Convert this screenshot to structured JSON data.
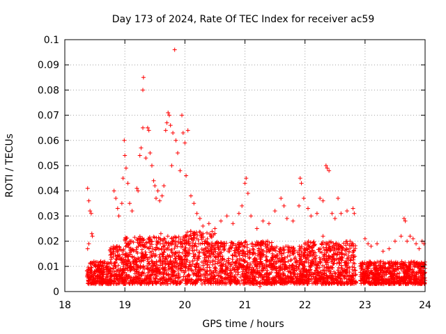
{
  "chart_data": {
    "type": "scatter",
    "title": "Day 173 of 2024, Rate Of TEC Index for receiver ac59",
    "xlabel": "GPS time / hours",
    "ylabel": "ROTI / TECUs",
    "xlim": [
      18,
      24
    ],
    "ylim": [
      0,
      0.1
    ],
    "xticks": [
      18,
      19,
      20,
      21,
      22,
      23,
      24
    ],
    "xtick_labels": [
      "18",
      "19",
      "20",
      "21",
      "22",
      "23",
      "24"
    ],
    "yticks": [
      0,
      0.01,
      0.02,
      0.03,
      0.04,
      0.05,
      0.06,
      0.07,
      0.08,
      0.09,
      0.1
    ],
    "ytick_labels": [
      "0",
      "0.01",
      "0.02",
      "0.03",
      "0.04",
      "0.05",
      "0.06",
      "0.07",
      "0.08",
      "0.09",
      "0.1"
    ],
    "grid": true,
    "marker": "+",
    "marker_color": "#ff0000",
    "series": [
      {
        "name": "ROTI",
        "points": [
          [
            18.38,
            0.041
          ],
          [
            18.4,
            0.036
          ],
          [
            18.42,
            0.032
          ],
          [
            18.44,
            0.031
          ],
          [
            18.45,
            0.023
          ],
          [
            18.46,
            0.022
          ],
          [
            18.38,
            0.017
          ],
          [
            18.4,
            0.019
          ],
          [
            18.82,
            0.04
          ],
          [
            18.85,
            0.037
          ],
          [
            18.88,
            0.033
          ],
          [
            18.9,
            0.03
          ],
          [
            18.95,
            0.035
          ],
          [
            18.99,
            0.06
          ],
          [
            19.0,
            0.054
          ],
          [
            19.02,
            0.049
          ],
          [
            18.97,
            0.045
          ],
          [
            19.05,
            0.043
          ],
          [
            19.08,
            0.035
          ],
          [
            19.12,
            0.032
          ],
          [
            19.2,
            0.041
          ],
          [
            19.22,
            0.04
          ],
          [
            19.25,
            0.054
          ],
          [
            19.27,
            0.057
          ],
          [
            19.3,
            0.065
          ],
          [
            19.3,
            0.08
          ],
          [
            19.31,
            0.085
          ],
          [
            19.35,
            0.053
          ],
          [
            19.38,
            0.065
          ],
          [
            19.4,
            0.064
          ],
          [
            19.42,
            0.055
          ],
          [
            19.45,
            0.05
          ],
          [
            19.48,
            0.044
          ],
          [
            19.5,
            0.042
          ],
          [
            19.52,
            0.037
          ],
          [
            19.55,
            0.04
          ],
          [
            19.58,
            0.036
          ],
          [
            19.62,
            0.038
          ],
          [
            19.65,
            0.042
          ],
          [
            19.68,
            0.064
          ],
          [
            19.7,
            0.067
          ],
          [
            19.72,
            0.071
          ],
          [
            19.74,
            0.07
          ],
          [
            19.76,
            0.066
          ],
          [
            19.78,
            0.05
          ],
          [
            19.8,
            0.063
          ],
          [
            19.83,
            0.096
          ],
          [
            19.85,
            0.06
          ],
          [
            19.88,
            0.055
          ],
          [
            19.92,
            0.048
          ],
          [
            19.95,
            0.07
          ],
          [
            19.97,
            0.063
          ],
          [
            20.0,
            0.059
          ],
          [
            20.02,
            0.046
          ],
          [
            20.05,
            0.064
          ],
          [
            20.1,
            0.038
          ],
          [
            20.15,
            0.035
          ],
          [
            20.2,
            0.031
          ],
          [
            20.25,
            0.029
          ],
          [
            20.3,
            0.026
          ],
          [
            20.4,
            0.027
          ],
          [
            20.5,
            0.025
          ],
          [
            20.6,
            0.028
          ],
          [
            20.7,
            0.03
          ],
          [
            20.8,
            0.027
          ],
          [
            20.9,
            0.031
          ],
          [
            20.95,
            0.034
          ],
          [
            21.0,
            0.043
          ],
          [
            21.02,
            0.045
          ],
          [
            21.05,
            0.039
          ],
          [
            21.1,
            0.03
          ],
          [
            21.2,
            0.025
          ],
          [
            21.3,
            0.028
          ],
          [
            21.4,
            0.027
          ],
          [
            21.5,
            0.032
          ],
          [
            21.6,
            0.037
          ],
          [
            21.65,
            0.034
          ],
          [
            21.7,
            0.029
          ],
          [
            21.8,
            0.028
          ],
          [
            21.9,
            0.034
          ],
          [
            21.92,
            0.045
          ],
          [
            21.94,
            0.043
          ],
          [
            21.98,
            0.037
          ],
          [
            22.05,
            0.033
          ],
          [
            22.1,
            0.03
          ],
          [
            22.2,
            0.031
          ],
          [
            22.25,
            0.037
          ],
          [
            22.3,
            0.036
          ],
          [
            22.35,
            0.05
          ],
          [
            22.37,
            0.049
          ],
          [
            22.4,
            0.048
          ],
          [
            22.45,
            0.031
          ],
          [
            22.5,
            0.029
          ],
          [
            22.55,
            0.037
          ],
          [
            22.6,
            0.031
          ],
          [
            22.7,
            0.032
          ],
          [
            22.8,
            0.033
          ],
          [
            22.82,
            0.031
          ],
          [
            23.0,
            0.021
          ],
          [
            23.05,
            0.019
          ],
          [
            23.1,
            0.018
          ],
          [
            23.2,
            0.019
          ],
          [
            23.3,
            0.016
          ],
          [
            23.4,
            0.017
          ],
          [
            23.5,
            0.02
          ],
          [
            23.6,
            0.022
          ],
          [
            23.65,
            0.029
          ],
          [
            23.67,
            0.028
          ],
          [
            23.7,
            0.02
          ],
          [
            23.75,
            0.022
          ],
          [
            23.8,
            0.021
          ],
          [
            23.85,
            0.019
          ],
          [
            23.9,
            0.017
          ],
          [
            23.95,
            0.02
          ],
          [
            23.98,
            0.019
          ],
          [
            22.3,
            0.022
          ],
          [
            21.25,
            0.002
          ],
          [
            20.5,
            0.019
          ],
          [
            19.6,
            0.023
          ],
          [
            18.6,
            0.012
          ]
        ]
      }
    ],
    "dense_band": {
      "description": "dense cloud of markers along the baseline",
      "segments": [
        {
          "x": [
            18.37,
            18.75
          ],
          "y": [
            0.003,
            0.012
          ]
        },
        {
          "x": [
            18.75,
            19.0
          ],
          "y": [
            0.003,
            0.018
          ]
        },
        {
          "x": [
            19.0,
            20.0
          ],
          "y": [
            0.003,
            0.022
          ]
        },
        {
          "x": [
            20.0,
            20.5
          ],
          "y": [
            0.003,
            0.024
          ]
        },
        {
          "x": [
            20.5,
            21.5
          ],
          "y": [
            0.003,
            0.02
          ]
        },
        {
          "x": [
            21.5,
            22.0
          ],
          "y": [
            0.003,
            0.018
          ]
        },
        {
          "x": [
            22.0,
            22.85
          ],
          "y": [
            0.003,
            0.02
          ]
        },
        {
          "x": [
            22.92,
            24.0
          ],
          "y": [
            0.003,
            0.012
          ]
        }
      ]
    }
  }
}
